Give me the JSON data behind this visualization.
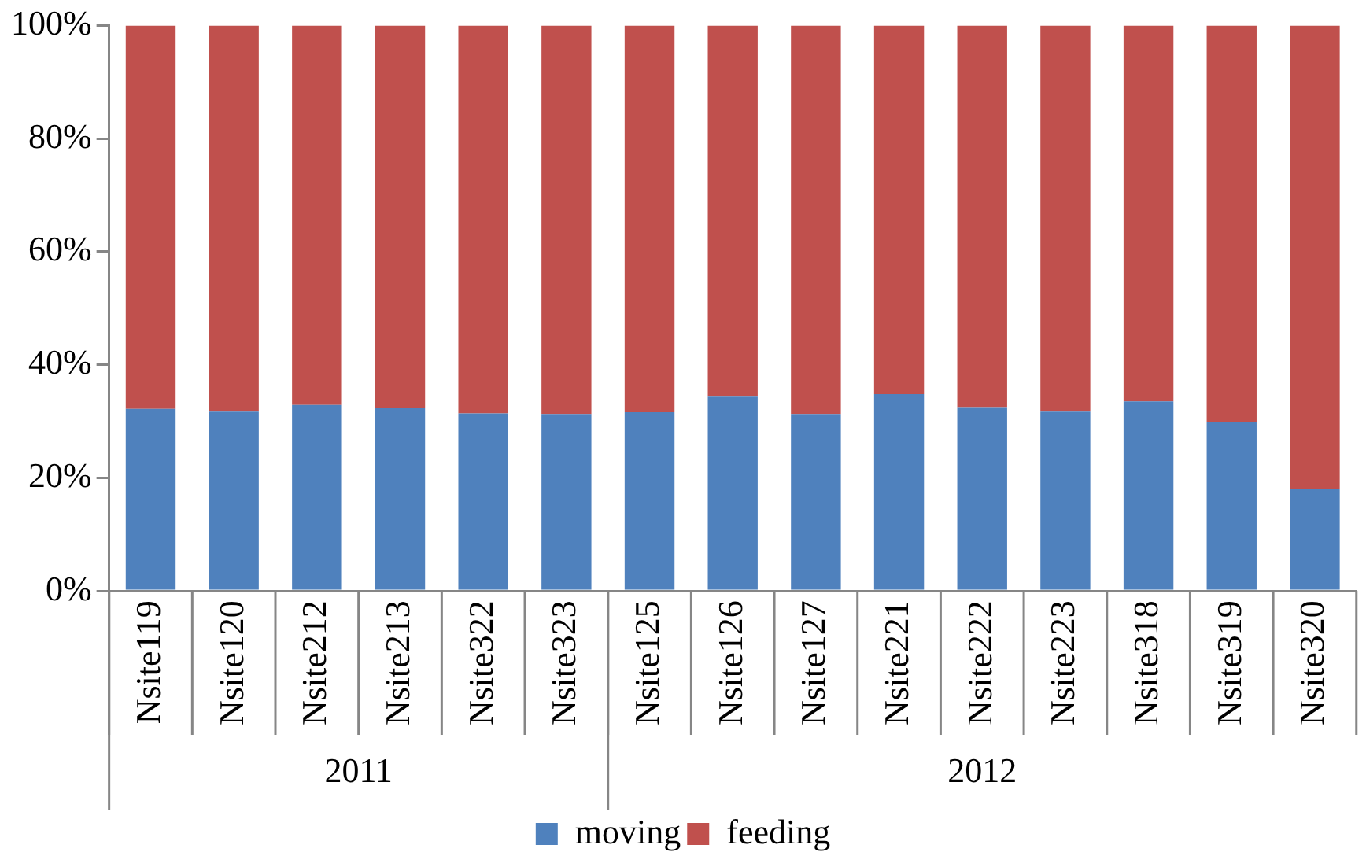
{
  "chart_data": {
    "type": "bar",
    "stacked": true,
    "categories": [
      "Nsite119",
      "Nsite120",
      "Nsite212",
      "Nsite213",
      "Nsite322",
      "Nsite323",
      "Nsite125",
      "Nsite126",
      "Nsite127",
      "Nsite221",
      "Nsite222",
      "Nsite223",
      "Nsite318",
      "Nsite319",
      "Nsite320"
    ],
    "series": [
      {
        "name": "moving",
        "color": "#4f81bd",
        "values": [
          32.2,
          31.7,
          32.9,
          32.4,
          31.4,
          31.3,
          31.6,
          34.5,
          31.3,
          34.8,
          32.5,
          31.7,
          33.5,
          29.9,
          18.0
        ]
      },
      {
        "name": "feeding",
        "color": "#c0504d",
        "values": [
          67.8,
          68.3,
          67.1,
          67.6,
          68.6,
          68.7,
          68.4,
          65.5,
          68.7,
          65.2,
          67.5,
          68.3,
          66.5,
          70.1,
          82.0
        ]
      }
    ],
    "ylim": [
      0,
      100
    ],
    "yticks": [
      {
        "value": 0,
        "label": "0%"
      },
      {
        "value": 20,
        "label": "20%"
      },
      {
        "value": 40,
        "label": "40%"
      },
      {
        "value": 60,
        "label": "60%"
      },
      {
        "value": 80,
        "label": "80%"
      },
      {
        "value": 100,
        "label": "100%"
      }
    ],
    "annotations": [
      "2011",
      "2012"
    ],
    "grid": false,
    "legend": "bottom"
  }
}
